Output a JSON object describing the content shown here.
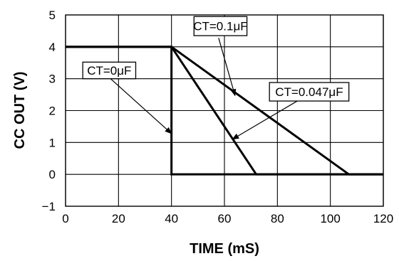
{
  "chart_data": {
    "type": "line",
    "xlabel": "TIME (mS)",
    "ylabel": "CC OUT (V)",
    "xlim": [
      0,
      120
    ],
    "ylim": [
      -1,
      5
    ],
    "xticks": [
      0,
      20,
      40,
      60,
      80,
      100,
      120
    ],
    "yticks": [
      -1,
      0,
      1,
      2,
      3,
      4,
      5
    ],
    "xtick_labels": [
      "0",
      "20",
      "40",
      "60",
      "80",
      "100",
      "120"
    ],
    "ytick_labels": [
      "−1",
      "0",
      "1",
      "2",
      "3",
      "4",
      "5"
    ],
    "grid": true,
    "series": [
      {
        "name": "CT=0μF",
        "x": [
          0,
          40,
          40,
          120
        ],
        "y": [
          4,
          4,
          0,
          0
        ]
      },
      {
        "name": "CT=0.047μF",
        "x": [
          0,
          40,
          72,
          120
        ],
        "y": [
          4,
          4,
          0,
          0
        ]
      },
      {
        "name": "CT=0.1μF",
        "x": [
          0,
          40,
          107,
          120
        ],
        "y": [
          4,
          4,
          0,
          0
        ]
      }
    ],
    "annotations": [
      {
        "text": "CT=0.1μF",
        "box": [
          68.5,
          4.67
        ],
        "box_data": {
          "x0": 48.5,
          "y0": 4.35,
          "x1": 68.5,
          "y1": 4.95
        },
        "arrow_from": [
          57.8,
          4.28
        ],
        "arrow_to": [
          64.0,
          2.47
        ]
      },
      {
        "text": "CT=0μF",
        "box_data": {
          "x0": 6.5,
          "y0": 3.0,
          "x1": 26.5,
          "y1": 3.52
        },
        "arrow_from": [
          17.0,
          3.0
        ],
        "arrow_to": [
          40.0,
          1.28
        ]
      },
      {
        "text": "CT=0.047μF",
        "box_data": {
          "x0": 77.0,
          "y0": 2.3,
          "x1": 107.0,
          "y1": 2.88
        },
        "arrow_from": [
          87.5,
          2.3
        ],
        "arrow_to": [
          63.0,
          1.1
        ]
      }
    ]
  }
}
